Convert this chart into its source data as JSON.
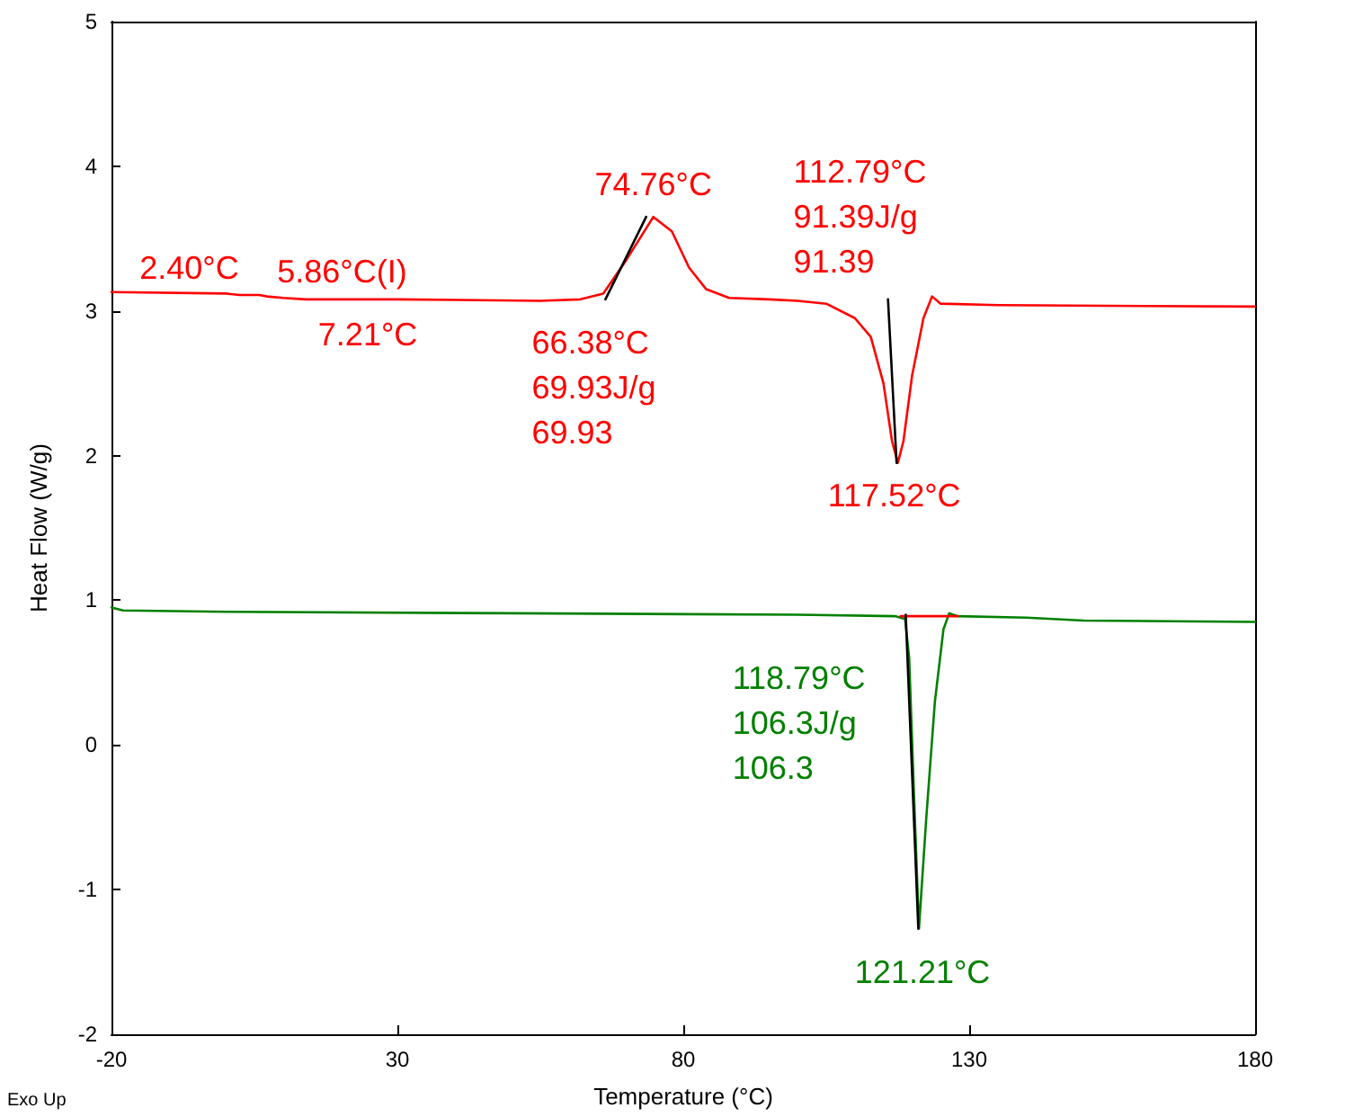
{
  "chart_data": {
    "type": "line",
    "xlabel": "Temperature (°C)",
    "ylabel": "Heat Flow (W/g)",
    "xlim": [
      -20,
      180
    ],
    "xticks": [
      -20,
      30,
      80,
      130,
      180
    ],
    "ylim": [
      -2,
      5
    ],
    "yticks": [
      -2,
      -1,
      0,
      1,
      2,
      3,
      4,
      5
    ],
    "grid": false,
    "marker": "none",
    "line_style": "solid",
    "series": [
      {
        "color": "#ff0000",
        "x": [
          -20,
          0,
          2.4,
          5.86,
          7.21,
          10,
          14,
          30,
          55,
          62,
          66,
          70,
          74.76,
          78,
          81,
          84,
          88,
          95,
          100,
          105,
          110,
          112.79,
          115,
          116.5,
          117.52,
          118.5,
          120,
          122,
          123.5,
          125,
          135,
          180
        ],
        "values": [
          3.13,
          3.12,
          3.11,
          3.11,
          3.1,
          3.09,
          3.08,
          3.08,
          3.07,
          3.08,
          3.12,
          3.35,
          3.65,
          3.55,
          3.3,
          3.15,
          3.09,
          3.08,
          3.07,
          3.05,
          2.95,
          2.82,
          2.5,
          2.1,
          1.95,
          2.1,
          2.55,
          2.95,
          3.1,
          3.05,
          3.04,
          3.03
        ]
      },
      {
        "color": "#008000",
        "x": [
          -20,
          -18,
          0,
          50,
          100,
          117,
          118.79,
          119.5,
          120.3,
          121.21,
          122.5,
          124,
          125.5,
          126.5,
          128,
          140,
          150,
          180
        ],
        "values": [
          0.95,
          0.93,
          0.92,
          0.91,
          0.9,
          0.89,
          0.87,
          0.6,
          -0.3,
          -1.27,
          -0.5,
          0.3,
          0.8,
          0.91,
          0.89,
          0.88,
          0.86,
          0.85
        ]
      },
      {
        "color": "#000000",
        "x": [
          66.38,
          73.5
        ],
        "values": [
          3.08,
          3.65
        ]
      },
      {
        "color": "#000000",
        "x": [
          115.8,
          117.3
        ],
        "values": [
          3.08,
          1.95
        ]
      },
      {
        "color": "#000000",
        "x": [
          118.9,
          121.1
        ],
        "values": [
          0.9,
          -1.27
        ]
      },
      {
        "color": "#ff0000",
        "x": [
          118,
          128
        ],
        "values": [
          0.89,
          0.89
        ]
      }
    ],
    "annotations": [
      {
        "text": "2.40°C",
        "x": 2.4,
        "y": 3.11
      },
      {
        "text": "5.86°C(I)",
        "x": 5.86,
        "y": 3.11
      },
      {
        "text": "7.21°C",
        "x": 7.21,
        "y": 3.1
      },
      {
        "text": "74.76°C",
        "x": 74.76,
        "y": 3.65
      },
      {
        "text": "66.38°C\n69.93J/g\n69.93",
        "x": 66.38,
        "y": 3.08
      },
      {
        "text": "112.79°C\n91.39J/g\n91.39",
        "x": 112.79,
        "y": 2.82
      },
      {
        "text": "117.52°C",
        "x": 117.52,
        "y": 1.95
      },
      {
        "text": "118.79°C\n106.3J/g\n106.3",
        "x": 118.79,
        "y": 0.87
      },
      {
        "text": "121.21°C",
        "x": 121.21,
        "y": -1.27
      },
      "Exo Up"
    ]
  }
}
